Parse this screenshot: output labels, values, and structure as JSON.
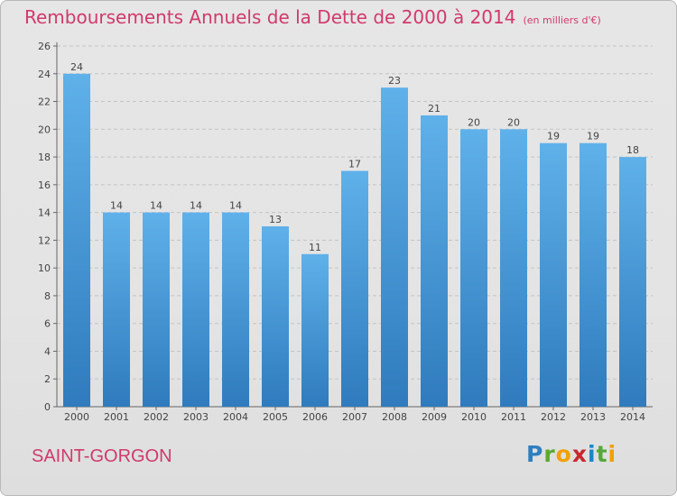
{
  "header": {
    "title": "Remboursements Annuels de la Dette de 2000 à 2014",
    "unit": "(en milliers d'€)"
  },
  "footer": {
    "town": "SAINT-GORGON",
    "logo_letters": [
      "P",
      "r",
      "o",
      "x",
      "i",
      "t",
      "i"
    ],
    "logo_colors": [
      "#2e7fc1",
      "#5aaa2a",
      "#f0a100",
      "#c8272e",
      "#1b86c7",
      "#56a83a",
      "#f0a100"
    ]
  },
  "colors": {
    "title": "#d03a6a",
    "bar_top": "#5fb1ea",
    "bar_bottom": "#2f7bbd",
    "grid": "#c4c4c4"
  },
  "chart_data": {
    "type": "bar",
    "title": "Remboursements Annuels de la Dette de 2000 à 2014",
    "unit": "(en milliers d'€)",
    "categories": [
      "2000",
      "2001",
      "2002",
      "2003",
      "2004",
      "2005",
      "2006",
      "2007",
      "2008",
      "2009",
      "2010",
      "2011",
      "2012",
      "2013",
      "2014"
    ],
    "values": [
      24,
      14,
      14,
      14,
      14,
      13,
      11,
      17,
      23,
      21,
      20,
      20,
      19,
      19,
      18
    ],
    "ylim": [
      0,
      26
    ],
    "yticks": [
      0,
      2,
      4,
      6,
      8,
      10,
      12,
      14,
      16,
      18,
      20,
      22,
      24,
      26
    ],
    "grid": true,
    "legend": "none"
  }
}
